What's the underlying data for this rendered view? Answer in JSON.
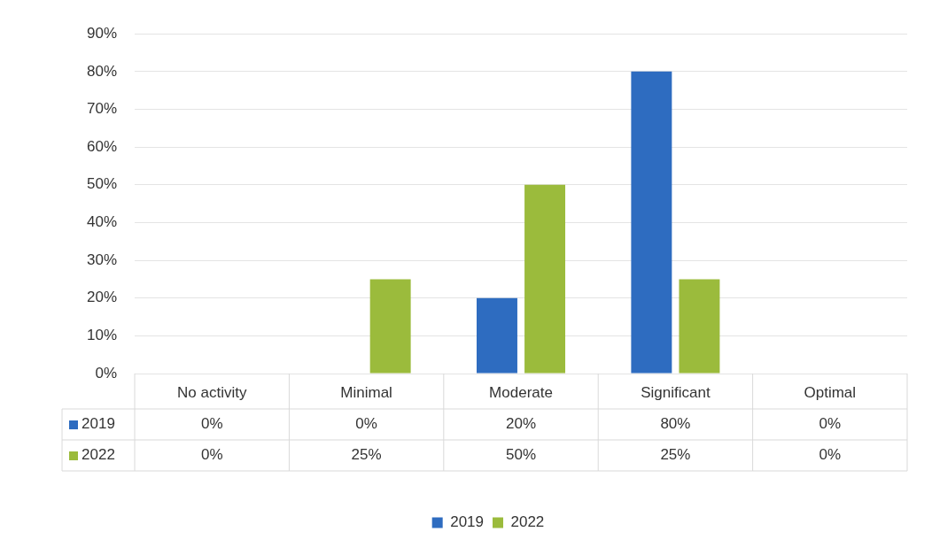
{
  "chart_data": {
    "type": "bar",
    "categories": [
      "No activity",
      "Minimal",
      "Moderate",
      "Significant",
      "Optimal"
    ],
    "series": [
      {
        "name": "2019",
        "color": "#2e6cc0",
        "values": [
          0,
          0,
          20,
          80,
          0
        ],
        "value_labels": [
          "0%",
          "0%",
          "20%",
          "80%",
          "0%"
        ]
      },
      {
        "name": "2022",
        "color": "#9bbb3c",
        "values": [
          0,
          25,
          50,
          25,
          0
        ],
        "value_labels": [
          "0%",
          "25%",
          "50%",
          "25%",
          "0%"
        ]
      }
    ],
    "ylim": [
      0,
      90
    ],
    "yticks": [
      {
        "value": 0,
        "label": "0%"
      },
      {
        "value": 10,
        "label": "10%"
      },
      {
        "value": 20,
        "label": "20%"
      },
      {
        "value": 30,
        "label": "30%"
      },
      {
        "value": 40,
        "label": "40%"
      },
      {
        "value": 50,
        "label": "50%"
      },
      {
        "value": 60,
        "label": "60%"
      },
      {
        "value": 70,
        "label": "70%"
      },
      {
        "value": 80,
        "label": "80%"
      },
      {
        "value": 90,
        "label": "90%"
      }
    ],
    "grid": "y",
    "legend": "bottom"
  }
}
